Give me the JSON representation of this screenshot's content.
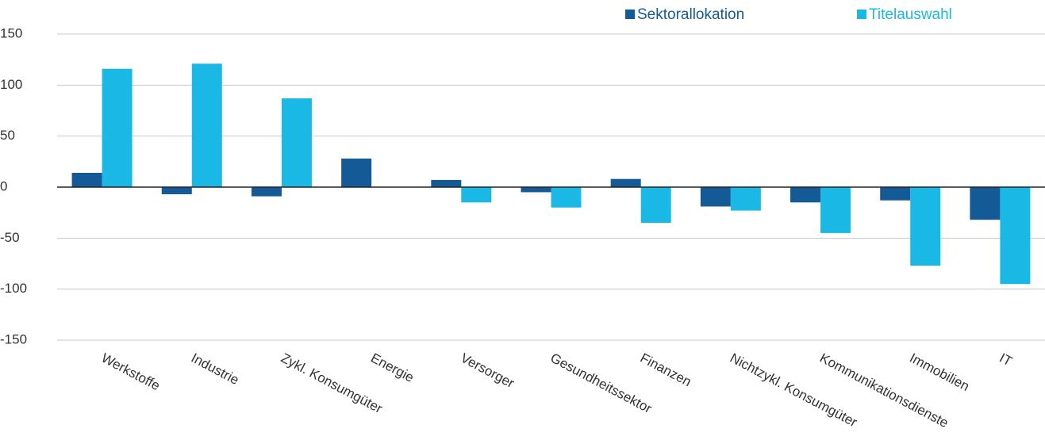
{
  "chart_data": {
    "type": "bar",
    "categories": [
      "Werkstoffe",
      "Industrie",
      "Zykl. Konsumgüter",
      "Energie",
      "Versorger",
      "Gesundheitssektor",
      "Finanzen",
      "Nichtzykl. Konsumgüter",
      "Kommunikationsdienste",
      "Immobilien",
      "IT"
    ],
    "series": [
      {
        "name": "Sektorallokation",
        "color": "#135a96",
        "values": [
          14,
          -7,
          -9,
          28,
          7,
          -5,
          8,
          -19,
          -15,
          -13,
          -32
        ]
      },
      {
        "name": "Titelauswahl",
        "color": "#1ab8e4",
        "values": [
          116,
          121,
          87,
          0,
          -15,
          -20,
          -35,
          -23,
          -45,
          -77,
          -95
        ]
      }
    ],
    "ylim": [
      -150,
      150
    ],
    "yticks": [
      -150,
      -100,
      -50,
      0,
      50,
      100,
      150
    ],
    "grid": true,
    "legend": "top-right"
  }
}
